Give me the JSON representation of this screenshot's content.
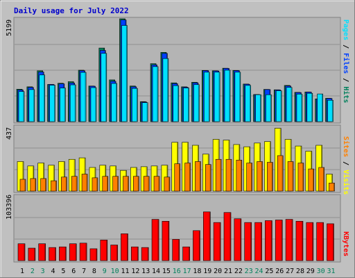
{
  "colors": {
    "background": "#c0c0c0",
    "panel": "#b4b4b4",
    "title": "#0000cc",
    "hits": "#00805c",
    "files": "#0040ff",
    "pages": "#00e0ff",
    "visits": "#ffff00",
    "sites": "#ff8000",
    "kbytes": "#ff0000",
    "weekend_day": "#00805c",
    "weekday": "#000000"
  },
  "chart_data": [
    {
      "type": "bar",
      "title": "Daily usage for July 2022",
      "categories": [
        "1",
        "2",
        "3",
        "4",
        "5",
        "6",
        "7",
        "8",
        "9",
        "10",
        "11",
        "12",
        "13",
        "14",
        "15",
        "16",
        "17",
        "18",
        "19",
        "20",
        "21",
        "22",
        "23",
        "24",
        "25",
        "26",
        "27",
        "28",
        "29",
        "30",
        "31"
      ],
      "weekend_days": [
        "2",
        "3",
        "9",
        "10",
        "16",
        "17",
        "23",
        "24",
        "30",
        "31"
      ],
      "ymax_label": "5199",
      "ylim": [
        0,
        5199
      ],
      "series": [
        {
          "name": "Hits",
          "color_key": "hits",
          "values": [
            1640,
            1760,
            2570,
            1880,
            1940,
            2020,
            2600,
            1800,
            3720,
            2110,
            5199,
            1800,
            1010,
            2930,
            3500,
            1960,
            1760,
            1990,
            2590,
            2570,
            2700,
            2590,
            1900,
            1370,
            1630,
            1610,
            1830,
            1480,
            1500,
            1150,
            1180
          ]
        },
        {
          "name": "Files",
          "color_key": "files",
          "values": [
            1600,
            1730,
            2510,
            1880,
            1910,
            1950,
            2570,
            1790,
            3600,
            2040,
            5140,
            1760,
            990,
            2870,
            3450,
            1920,
            1740,
            1960,
            2580,
            2560,
            2690,
            2580,
            1890,
            1370,
            1620,
            1600,
            1800,
            1470,
            1490,
            1150,
            1170
          ]
        },
        {
          "name": "Pages",
          "color_key": "pages",
          "values": [
            1520,
            1620,
            2360,
            1840,
            1700,
            1860,
            2490,
            1720,
            3450,
            1930,
            4860,
            1680,
            960,
            2780,
            3190,
            1820,
            1700,
            1870,
            2500,
            2500,
            2600,
            2500,
            1830,
            1360,
            1360,
            1560,
            1730,
            1390,
            1430,
            1400,
            1080
          ]
        }
      ]
    },
    {
      "type": "bar",
      "ymax_label": "437",
      "ylim": [
        0,
        437
      ],
      "series": [
        {
          "name": "Visits",
          "color_key": "visits",
          "values": [
            200,
            170,
            190,
            175,
            200,
            215,
            225,
            160,
            175,
            170,
            140,
            160,
            165,
            170,
            175,
            330,
            330,
            310,
            250,
            350,
            345,
            315,
            300,
            325,
            335,
            425,
            350,
            305,
            270,
            310,
            115
          ]
        },
        {
          "name": "Sites",
          "color_key": "sites",
          "values": [
            80,
            85,
            85,
            70,
            95,
            100,
            115,
            90,
            100,
            100,
            100,
            100,
            100,
            100,
            95,
            185,
            190,
            200,
            180,
            215,
            215,
            210,
            190,
            200,
            195,
            240,
            200,
            190,
            150,
            160,
            55
          ]
        }
      ]
    },
    {
      "type": "bar",
      "ymax_label": "103396",
      "ylim": [
        0,
        103396
      ],
      "series": [
        {
          "name": "KBytes",
          "color_key": "kbytes",
          "values": [
            27000,
            20000,
            27000,
            21000,
            22000,
            27000,
            28000,
            19000,
            33000,
            25000,
            43000,
            22000,
            21000,
            66000,
            63000,
            34000,
            22000,
            48000,
            78000,
            61000,
            77000,
            67000,
            61000,
            61000,
            64000,
            65000,
            66000,
            63000,
            61000,
            61000,
            59000
          ]
        }
      ]
    }
  ]
}
